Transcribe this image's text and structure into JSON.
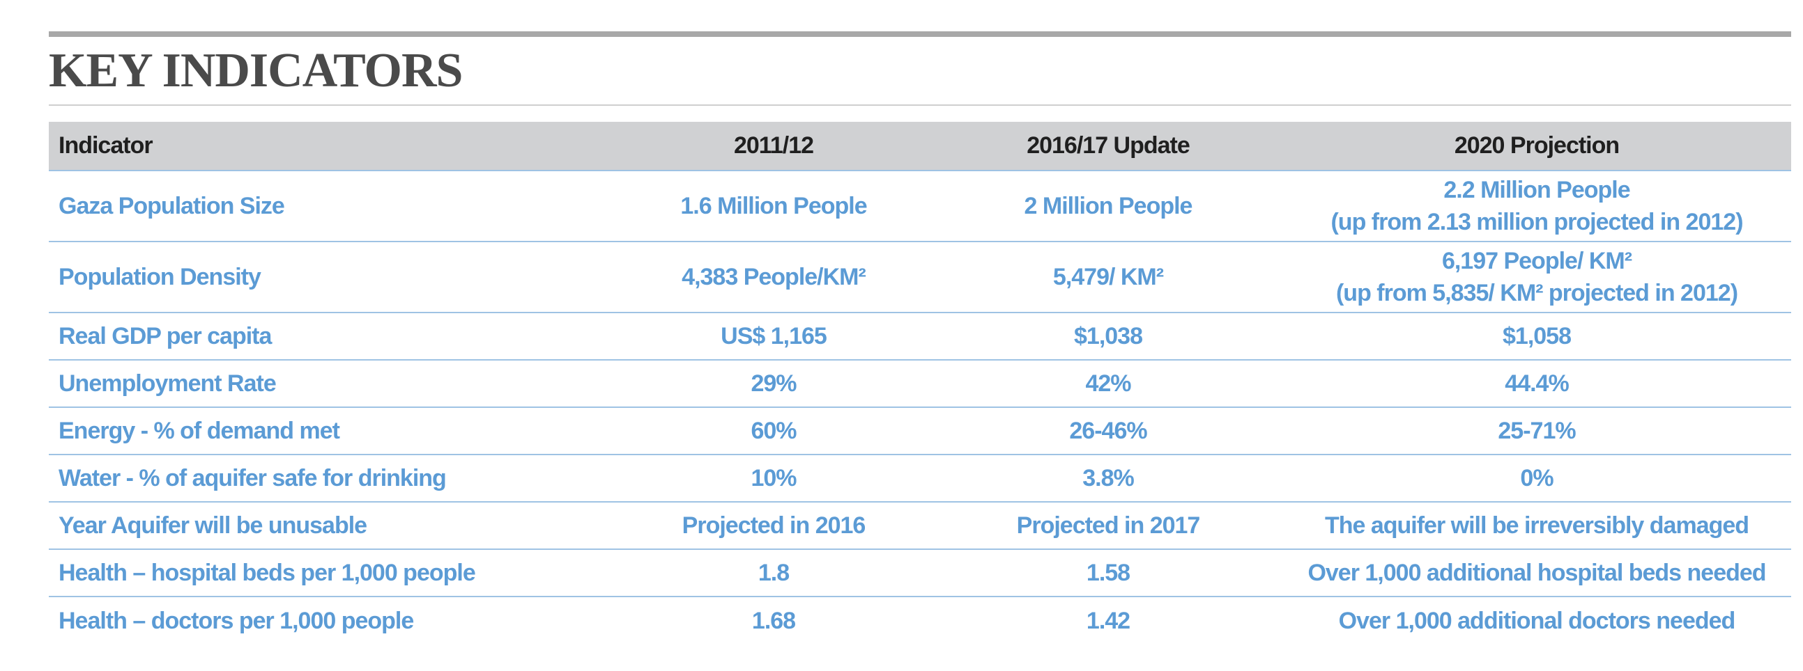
{
  "title": "KEY INDICATORS",
  "table": {
    "headers": [
      "Indicator",
      "2011/12",
      "2016/17 Update",
      "2020 Projection"
    ],
    "rows": [
      {
        "indicator": "Gaza Population Size",
        "y2011": "1.6 Million People",
        "y2016": "2 Million People",
        "y2020": [
          "2.2 Million People",
          "(up from 2.13 million projected in 2012)"
        ]
      },
      {
        "indicator": "Population Density",
        "y2011": "4,383 People/KM²",
        "y2016": "5,479/ KM²",
        "y2020": [
          "6,197 People/ KM²",
          "(up from 5,835/ KM² projected in 2012)"
        ]
      },
      {
        "indicator": "Real GDP per capita",
        "y2011": "US$ 1,165",
        "y2016": "$1,038",
        "y2020": [
          "$1,058"
        ]
      },
      {
        "indicator": "Unemployment Rate",
        "y2011": "29%",
        "y2016": "42%",
        "y2020": [
          "44.4%"
        ]
      },
      {
        "indicator": "Energy - % of demand met",
        "y2011": "60%",
        "y2016": "26-46%",
        "y2020": [
          "25-71%"
        ]
      },
      {
        "indicator": "Water - % of aquifer safe for drinking",
        "y2011": "10%",
        "y2016": "3.8%",
        "y2020": [
          "0%"
        ]
      },
      {
        "indicator": "Year Aquifer will be unusable",
        "y2011": "Projected in 2016",
        "y2016": "Projected in 2017",
        "y2020": [
          "The aquifer will be irreversibly damaged"
        ]
      },
      {
        "indicator": "Health – hospital beds per 1,000 people",
        "y2011": "1.8",
        "y2016": "1.58",
        "y2020": [
          "Over 1,000 additional hospital beds needed"
        ]
      },
      {
        "indicator": "Health – doctors per 1,000 people",
        "y2011": "1.68",
        "y2016": "1.42",
        "y2020": [
          "Over 1,000 additional doctors needed"
        ]
      }
    ]
  },
  "colors": {
    "title": "#4a4a4a",
    "header_bg": "#d0d1d3",
    "cell_text": "#5b9bd5",
    "row_rule": "#9fc3e4"
  }
}
